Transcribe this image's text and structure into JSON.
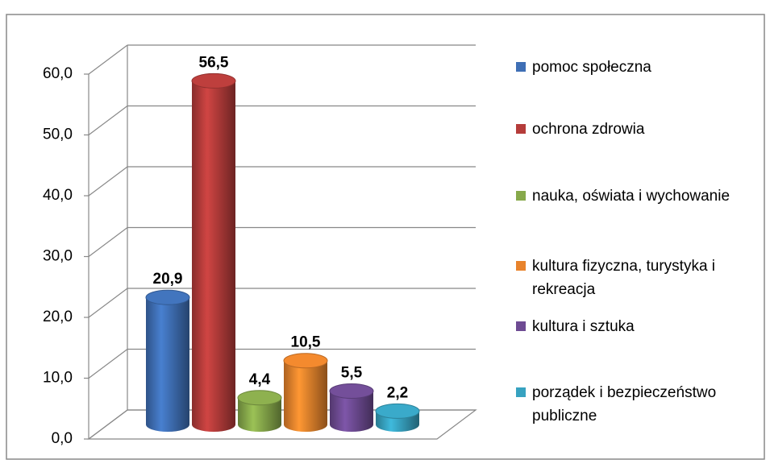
{
  "chart_data": {
    "type": "bar3d",
    "categories": [
      "pomoc społeczna",
      "ochrona zdrowia",
      "nauka, oświata i wychowanie",
      "kultura fizyczna, turystyka i rekreacja",
      "kultura i sztuka",
      "porządek i bezpieczeństwo publiczne"
    ],
    "values": [
      20.9,
      56.5,
      4.4,
      10.5,
      5.5,
      2.2
    ],
    "value_labels": [
      "20,9",
      "56,5",
      "4,4",
      "10,5",
      "5,5",
      "2,2"
    ],
    "colors": [
      "#3f6fb5",
      "#b53c3a",
      "#87a94b",
      "#e8832c",
      "#6e4b93",
      "#37a2c0"
    ],
    "ylim": [
      0,
      60
    ],
    "yticks": [
      {
        "value": 0,
        "label": "0,0"
      },
      {
        "value": 10,
        "label": "10,0"
      },
      {
        "value": 20,
        "label": "20,0"
      },
      {
        "value": 30,
        "label": "30,0"
      },
      {
        "value": 40,
        "label": "40,0"
      },
      {
        "value": 50,
        "label": "50,0"
      },
      {
        "value": 60,
        "label": "60,0"
      }
    ],
    "grid": true,
    "legend": "right"
  }
}
